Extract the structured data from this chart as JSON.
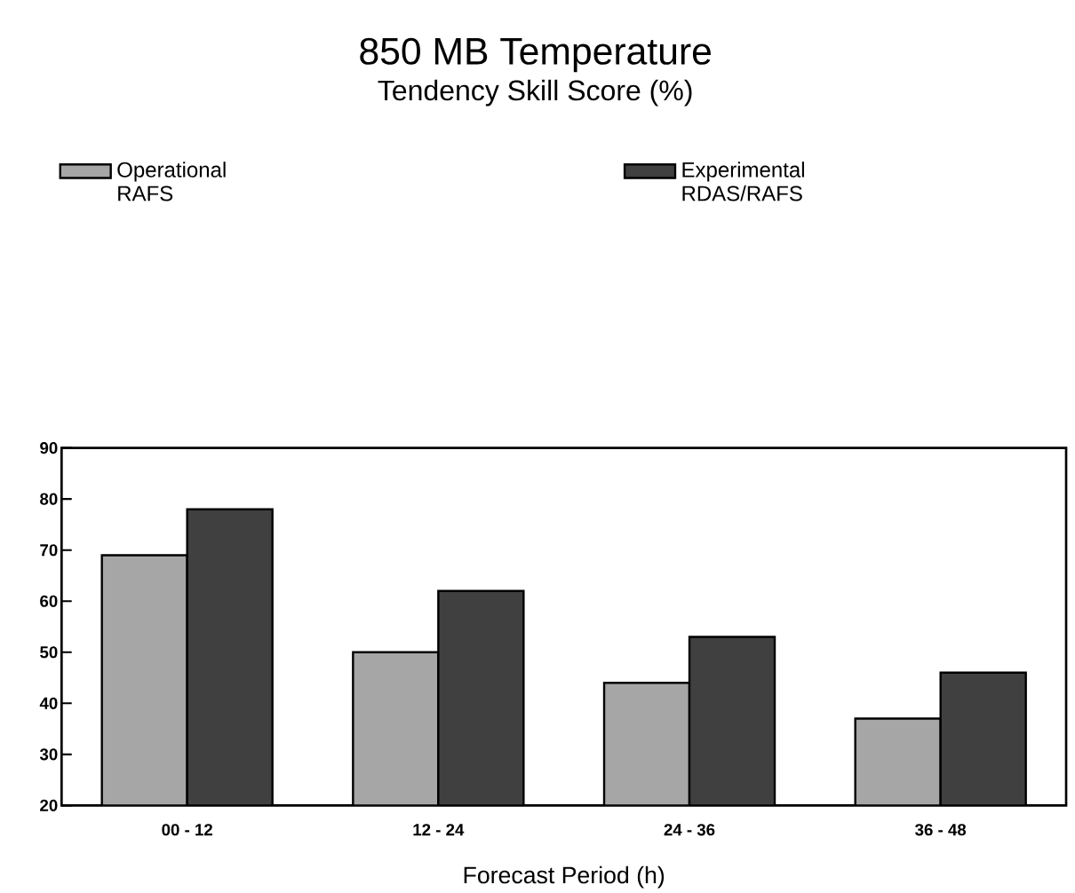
{
  "chart_data": {
    "type": "bar",
    "title": "850 MB Temperature",
    "subtitle": "Tendency Skill Score (%)",
    "xlabel": "Forecast Period (h)",
    "categories": [
      "00 - 12",
      "12 - 24",
      "24 - 36",
      "36 - 48"
    ],
    "series": [
      {
        "name": "Operational RAFS",
        "color": "#a6a6a6",
        "values": [
          69,
          50,
          44,
          37
        ]
      },
      {
        "name": "Experimental RDAS/RAFS",
        "color": "#404040",
        "values": [
          78,
          62,
          53,
          46
        ]
      }
    ],
    "ylim": [
      20,
      90
    ],
    "yticks": [
      20,
      30,
      40,
      50,
      60,
      70,
      80,
      90
    ],
    "legend": "top"
  }
}
